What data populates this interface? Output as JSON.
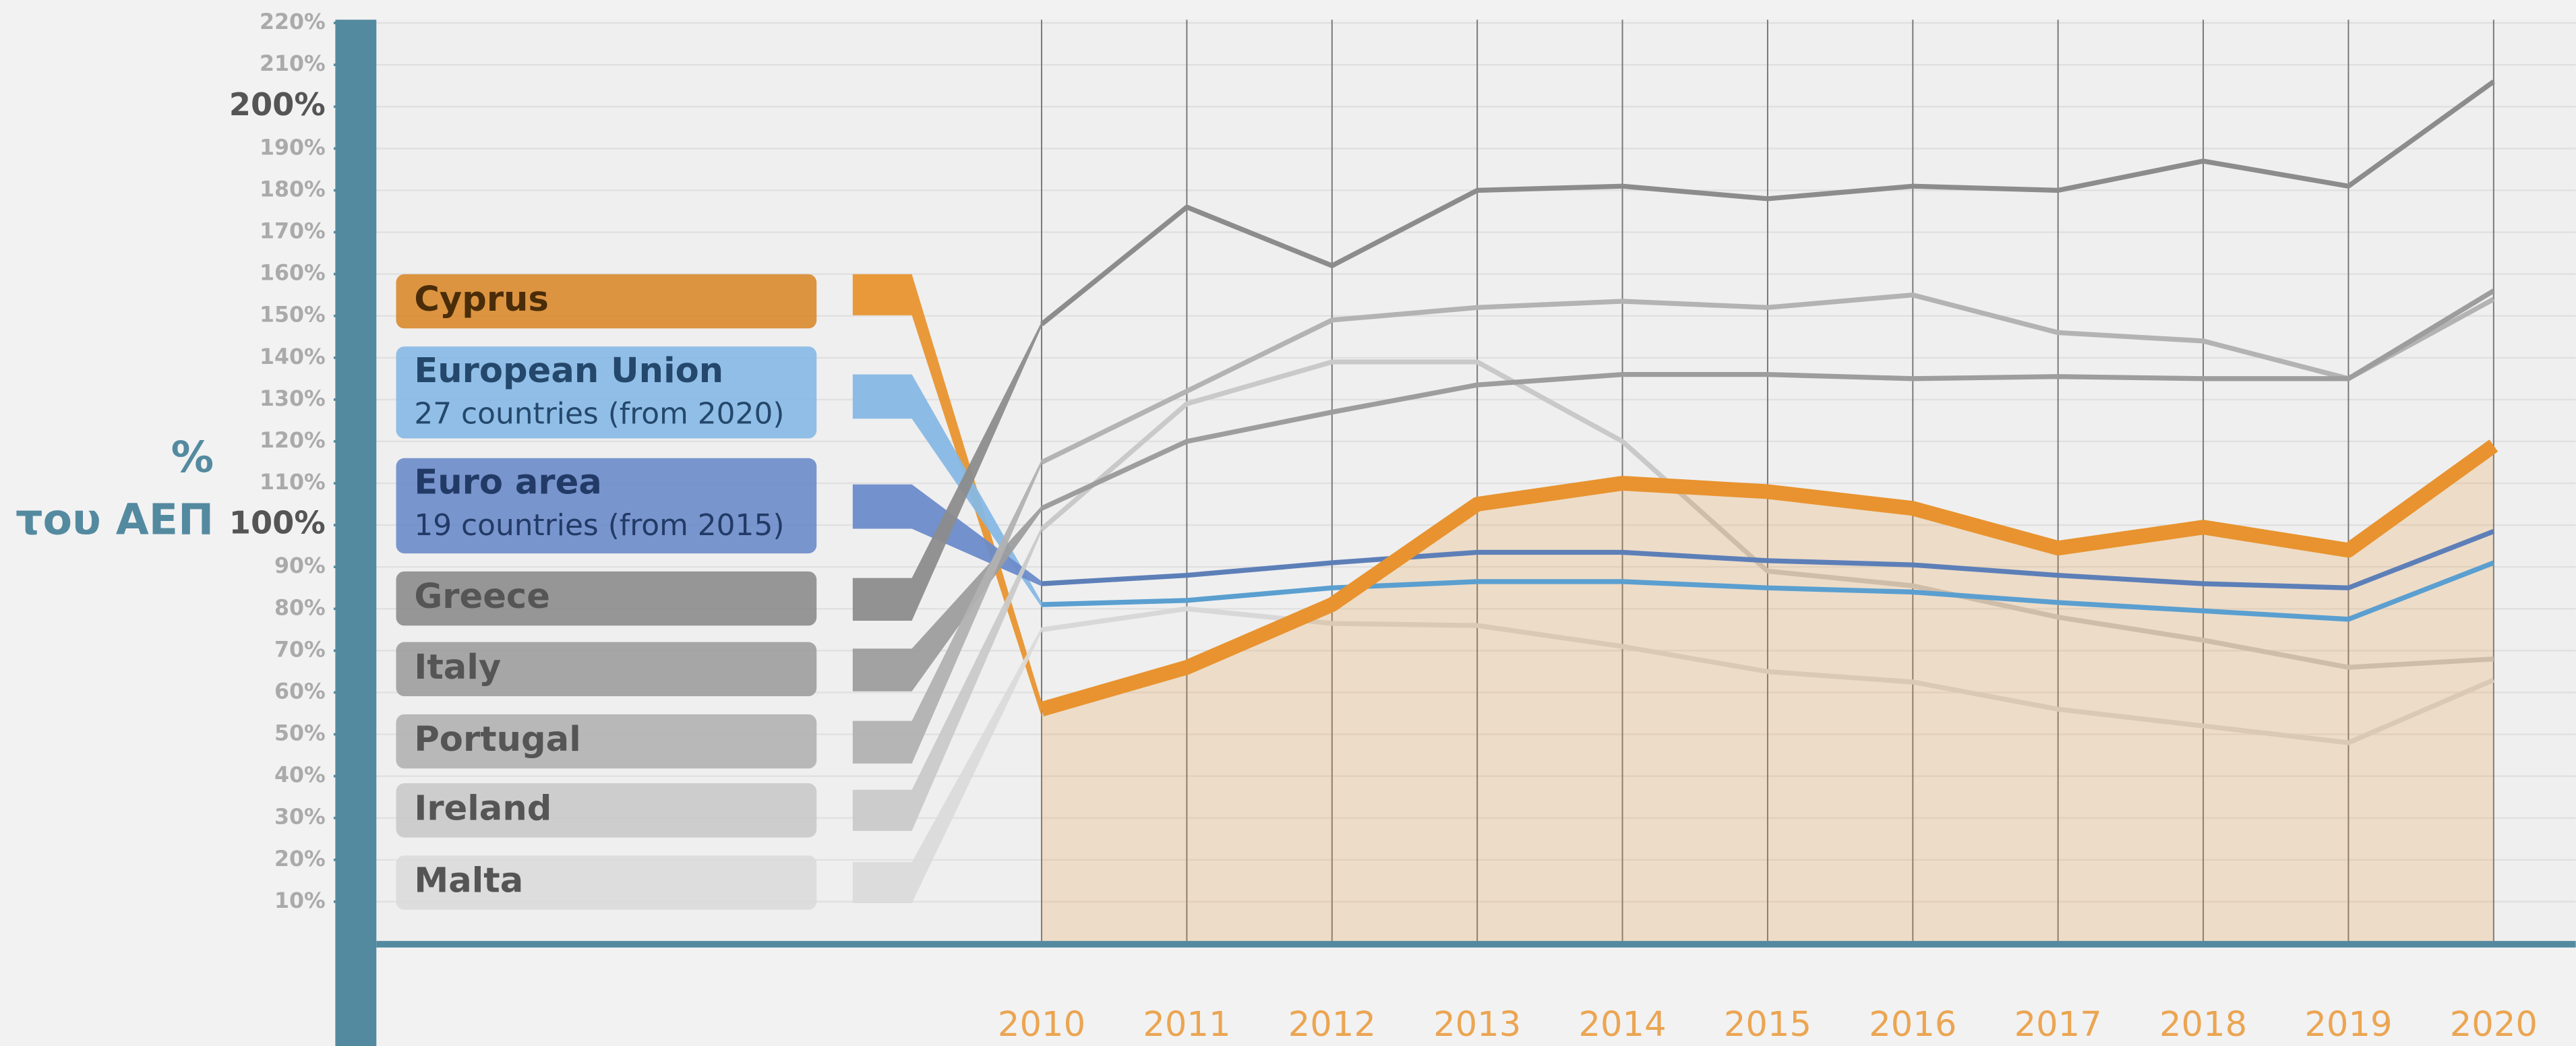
{
  "chart_data": {
    "type": "line",
    "y_label_lines": [
      "%",
      "του ΑΕΠ"
    ],
    "categories": [
      "2010",
      "2011",
      "2012",
      "2013",
      "2014",
      "2015",
      "2016",
      "2017",
      "2018",
      "2019",
      "2020"
    ],
    "ylim": [
      0,
      220
    ],
    "yticks": [
      {
        "value": 10,
        "label": "10%"
      },
      {
        "value": 20,
        "label": "20%"
      },
      {
        "value": 30,
        "label": "30%"
      },
      {
        "value": 40,
        "label": "40%"
      },
      {
        "value": 50,
        "label": "50%"
      },
      {
        "value": 60,
        "label": "60%"
      },
      {
        "value": 70,
        "label": "70%"
      },
      {
        "value": 80,
        "label": "80%"
      },
      {
        "value": 90,
        "label": "90%"
      },
      {
        "value": 100,
        "label": "100%"
      },
      {
        "value": 110,
        "label": "110%"
      },
      {
        "value": 120,
        "label": "120%"
      },
      {
        "value": 130,
        "label": "130%"
      },
      {
        "value": 140,
        "label": "140%"
      },
      {
        "value": 150,
        "label": "150%"
      },
      {
        "value": 160,
        "label": "160%"
      },
      {
        "value": 170,
        "label": "170%"
      },
      {
        "value": 180,
        "label": "180%"
      },
      {
        "value": 190,
        "label": "190%"
      },
      {
        "value": 200,
        "label": "200%"
      },
      {
        "value": 210,
        "label": "210%"
      },
      {
        "value": 220,
        "label": "220%"
      }
    ],
    "grid": true,
    "series": [
      {
        "name": "Cyprus",
        "color": "#e8932f",
        "values": [
          56,
          66,
          81,
          105,
          110,
          108,
          104,
          94.5,
          99.5,
          94,
          119
        ]
      },
      {
        "name": "European Union",
        "note": "27 countries (from 2020)",
        "color": "#5a9fd0",
        "values": [
          81,
          82,
          85,
          86.5,
          86.5,
          85,
          84,
          81.5,
          79.5,
          77.5,
          91
        ]
      },
      {
        "name": "Euro area",
        "note": "19 countries (from 2015)",
        "color": "#5d7fb8",
        "values": [
          86,
          88,
          91,
          93.5,
          93.5,
          91.5,
          90.5,
          88,
          86,
          85,
          98.5
        ]
      },
      {
        "name": "Greece",
        "color": "#8c8c8c",
        "values": [
          148,
          176,
          162,
          180,
          181,
          178,
          181,
          180,
          187,
          181,
          206
        ]
      },
      {
        "name": "Italy",
        "color": "#9d9d9d",
        "values": [
          104,
          120,
          127,
          133.5,
          136,
          136,
          135,
          135.5,
          135,
          135,
          156
        ]
      },
      {
        "name": "Portugal",
        "color": "#b3b3b3",
        "values": [
          115,
          132,
          149,
          152,
          153.5,
          152,
          155,
          146,
          144,
          135,
          154
        ]
      },
      {
        "name": "Ireland",
        "color": "#c9c9c9",
        "values": [
          99,
          129,
          139,
          139,
          120,
          89,
          85.5,
          78,
          72.5,
          66,
          68
        ]
      },
      {
        "name": "Malta",
        "color": "#d8d8d8",
        "values": [
          75,
          80,
          76.5,
          76,
          71,
          65,
          62.5,
          56,
          52,
          48,
          63
        ]
      }
    ]
  }
}
